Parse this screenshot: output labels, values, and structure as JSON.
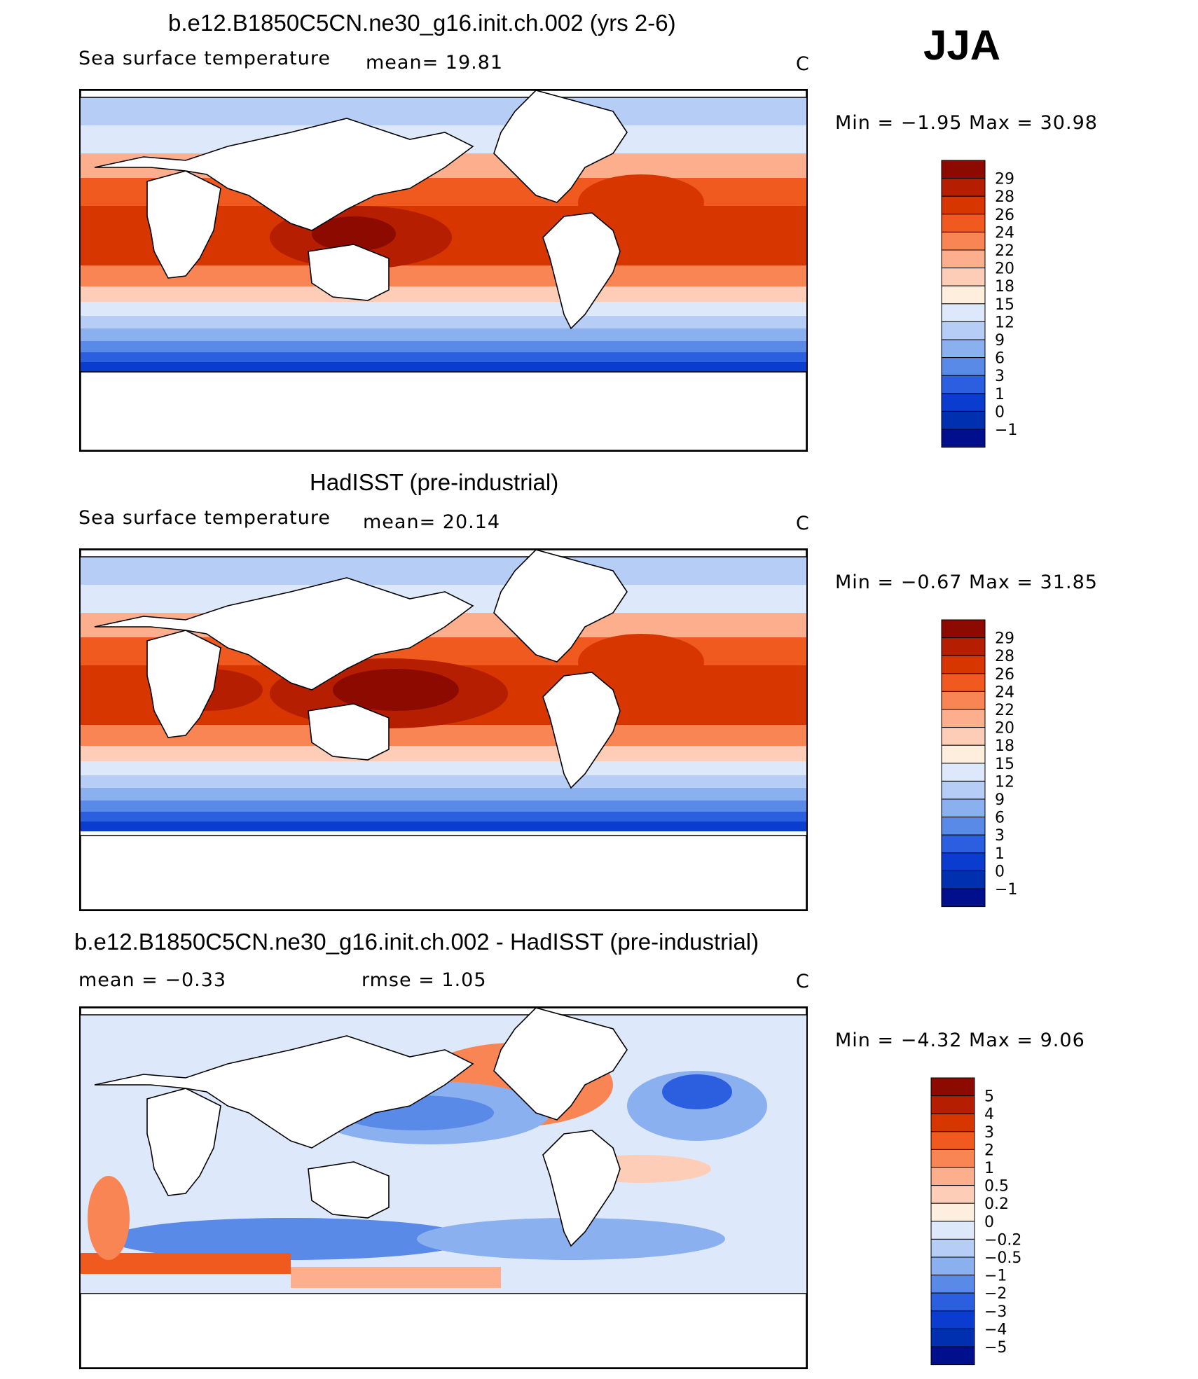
{
  "season": "JJA",
  "panels": [
    {
      "title": "b.e12.B1850C5CN.ne30_g16.init.ch.002 (yrs 2-6)",
      "variable": "Sea surface temperature",
      "stat_text": "mean=   19.81",
      "rmse_text": "",
      "units": "C",
      "minmax_text": "Min =   −1.95 Max =   30.98",
      "colorbar": {
        "labels": [
          "29",
          "28",
          "26",
          "24",
          "22",
          "20",
          "18",
          "15",
          "12",
          "9",
          "6",
          "3",
          "1",
          "0",
          "−1"
        ],
        "colors": [
          "#8c0a00",
          "#b51e00",
          "#d83600",
          "#f15a1f",
          "#f98454",
          "#fcae8d",
          "#fdcdb8",
          "#fdeedd",
          "#dde9fb",
          "#b6cdf6",
          "#8ab0ef",
          "#5a8ae8",
          "#2b5fe0",
          "#0b3cd0",
          "#002fb0",
          "#000f8c"
        ]
      }
    },
    {
      "title": "HadISST (pre-industrial)",
      "variable": "Sea surface temperature",
      "stat_text": "mean=   20.14",
      "rmse_text": "",
      "units": "C",
      "minmax_text": "Min =   −0.67 Max =   31.85",
      "colorbar": {
        "labels": [
          "29",
          "28",
          "26",
          "24",
          "22",
          "20",
          "18",
          "15",
          "12",
          "9",
          "6",
          "3",
          "1",
          "0",
          "−1"
        ],
        "colors": [
          "#8c0a00",
          "#b51e00",
          "#d83600",
          "#f15a1f",
          "#f98454",
          "#fcae8d",
          "#fdcdb8",
          "#fdeedd",
          "#dde9fb",
          "#b6cdf6",
          "#8ab0ef",
          "#5a8ae8",
          "#2b5fe0",
          "#0b3cd0",
          "#002fb0",
          "#000f8c"
        ]
      }
    },
    {
      "title": "b.e12.B1850C5CN.ne30_g16.init.ch.002 - HadISST (pre-industrial)",
      "variable": "",
      "stat_text": "mean =   −0.33",
      "rmse_text": "rmse =    1.05",
      "units": "C",
      "minmax_text": "Min =   −4.32 Max =    9.06",
      "colorbar": {
        "labels": [
          "5",
          "4",
          "3",
          "2",
          "1",
          "0.5",
          "0.2",
          "0",
          "−0.2",
          "−0.5",
          "−1",
          "−2",
          "−3",
          "−4",
          "−5"
        ],
        "colors": [
          "#8c0a00",
          "#b51e00",
          "#d83600",
          "#f15a1f",
          "#f98454",
          "#fcae8d",
          "#fdcdb8",
          "#fdeedd",
          "#dde9fb",
          "#b6cdf6",
          "#8ab0ef",
          "#5a8ae8",
          "#2b5fe0",
          "#0b3cd0",
          "#002fb0",
          "#000f8c"
        ]
      }
    }
  ]
}
